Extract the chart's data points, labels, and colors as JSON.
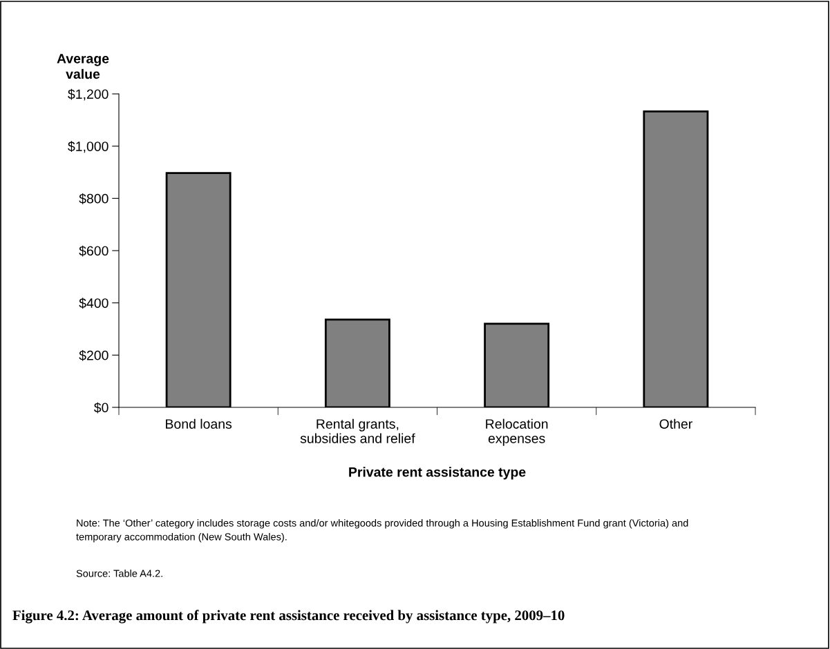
{
  "chart_data": {
    "type": "bar",
    "title": "Figure 4.2: Average amount of private rent assistance received by assistance type, 2009–10",
    "xlabel": "Private rent assistance type",
    "ylabel": "Average\nvalue",
    "categories": [
      "Bond loans",
      "Rental grants,\nsubsidies and relief",
      "Relocation\nexpenses",
      "Other"
    ],
    "values": [
      897,
      336,
      320,
      1133
    ],
    "color": "#808080",
    "ylim": [
      0,
      1200
    ],
    "yticks": [
      {
        "value": 0,
        "label": "$0"
      },
      {
        "value": 200,
        "label": "$200"
      },
      {
        "value": 400,
        "label": "$400"
      },
      {
        "value": 600,
        "label": "$600"
      },
      {
        "value": 800,
        "label": "$800"
      },
      {
        "value": 1000,
        "label": "$1,000"
      },
      {
        "value": 1200,
        "label": "$1,200"
      }
    ],
    "grid": false,
    "annotations": [
      "Note: The ‘Other’ category includes storage costs and/or whitegoods provided through a Housing Establishment Fund grant (Victoria) and\ntemporary accommodation (New South Wales).",
      "Source: Table A4.2."
    ]
  }
}
